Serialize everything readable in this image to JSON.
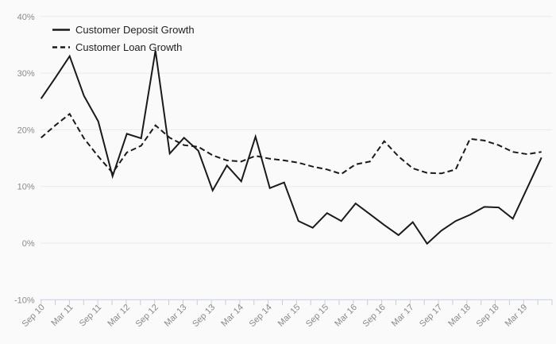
{
  "chart_data": {
    "type": "line",
    "title": "",
    "xlabel": "",
    "ylabel": "",
    "grid": "horizontal",
    "legend_position": "top-left",
    "y_ticks": [
      {
        "label": "40%",
        "value": 40
      },
      {
        "label": "30%",
        "value": 30
      },
      {
        "label": "20%",
        "value": 20
      },
      {
        "label": "10%",
        "value": 10
      },
      {
        "label": "0%",
        "value": 0
      },
      {
        "label": "-10%",
        "value": -10
      }
    ],
    "ylim": [
      -10,
      40
    ],
    "x_axis_labels": [
      "Sep 10",
      "Mar 11",
      "Sep 11",
      "Mar 12",
      "Sep 12",
      "Mar 13",
      "Sep 13",
      "Mar 14",
      "Sep 14",
      "Mar 15",
      "Sep 15",
      "Mar 16",
      "Sep 16",
      "Mar 17",
      "Sep 17",
      "Mar 18",
      "Sep 18",
      "Mar 19"
    ],
    "x": [
      "Sep-10",
      "Dec-10",
      "Mar-11",
      "Jun-11",
      "Sep-11",
      "Dec-11",
      "Mar-12",
      "Jun-12",
      "Sep-12",
      "Dec-12",
      "Mar-13",
      "Jun-13",
      "Sep-13",
      "Dec-13",
      "Mar-14",
      "Jun-14",
      "Sep-14",
      "Dec-14",
      "Mar-15",
      "Jun-15",
      "Sep-15",
      "Dec-15",
      "Mar-16",
      "Jun-16",
      "Sep-16",
      "Dec-16",
      "Mar-17",
      "Jun-17",
      "Sep-17",
      "Dec-17",
      "Mar-18",
      "Jun-18",
      "Sep-18",
      "Dec-18",
      "Mar-19",
      "Jun-19"
    ],
    "series": [
      {
        "name": "Customer Deposit Growth",
        "style": "solid",
        "unit": "%",
        "values": [
          25.5,
          29.2,
          33.0,
          26.0,
          21.5,
          11.8,
          19.3,
          18.5,
          34.0,
          15.8,
          18.6,
          16.3,
          9.3,
          13.7,
          10.9,
          18.8,
          9.7,
          10.7,
          3.9,
          2.7,
          5.3,
          3.9,
          7.0,
          5.1,
          3.2,
          1.4,
          3.7,
          -0.1,
          2.2,
          3.9,
          5.0,
          6.4,
          6.3,
          4.3,
          9.7,
          15.1
        ]
      },
      {
        "name": "Customer Loan Growth",
        "style": "dashed",
        "unit": "%",
        "values": [
          18.6,
          20.8,
          22.8,
          18.5,
          15.3,
          12.4,
          16.0,
          17.2,
          20.8,
          18.6,
          17.3,
          17.0,
          15.5,
          14.6,
          14.4,
          15.4,
          14.9,
          14.6,
          14.2,
          13.5,
          13.0,
          12.2,
          13.9,
          14.4,
          18.0,
          15.3,
          13.2,
          12.4,
          12.3,
          13.0,
          18.4,
          18.1,
          17.3,
          16.1,
          15.7,
          16.1
        ]
      }
    ],
    "colors": {
      "line": "#1a1a1a",
      "grid": "#e9e9e9",
      "axis": "#c5cde5",
      "tick_label": "#8a8a8a",
      "legend_text": "#222222",
      "background": "#fafafa"
    }
  }
}
